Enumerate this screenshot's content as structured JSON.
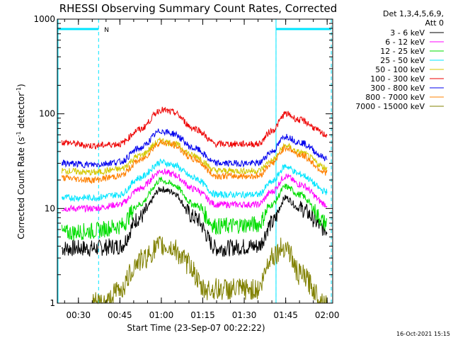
{
  "chart_data": {
    "type": "line",
    "title": "RHESSI Observing Summary Count Rates, Corrected",
    "xlabel": "Start Time (23-Sep-07 00:22:22)",
    "ylabel": "Corrected Count Rate (s",
    "ylabel_sup1": "-1",
    "ylabel_mid": " detector",
    "ylabel_sup2": "-1",
    "ylabel_end": ")",
    "yscale": "log",
    "ylim": [
      1,
      1000
    ],
    "xlim_minutes": [
      22.37,
      122
    ],
    "x_ticks": [
      {
        "label": "00:30",
        "minutes": 30
      },
      {
        "label": "00:45",
        "minutes": 45
      },
      {
        "label": "01:00",
        "minutes": 60
      },
      {
        "label": "01:15",
        "minutes": 75
      },
      {
        "label": "01:30",
        "minutes": 90
      },
      {
        "label": "01:45",
        "minutes": 105
      },
      {
        "label": "02:00",
        "minutes": 120
      }
    ],
    "y_ticks": [
      {
        "label": "1",
        "value": 1
      },
      {
        "label": "10",
        "value": 10
      },
      {
        "label": "100",
        "value": 100
      },
      {
        "label": "1000",
        "value": 1000
      }
    ],
    "legend_header_1": "Det 1,3,4,5,6,9,",
    "legend_header_2": "Att 0",
    "legend_placement": "right",
    "series": [
      {
        "name": "3 - 6 keV",
        "color": "#000000",
        "x": [
          24,
          35,
          45,
          52,
          60,
          64,
          72,
          80,
          95,
          100,
          105,
          110,
          120
        ],
        "y": [
          3.8,
          3.8,
          4.0,
          8,
          16,
          15,
          8,
          3.8,
          4.0,
          7,
          13,
          10,
          6
        ]
      },
      {
        "name": "6 - 12 keV",
        "color": "#ff00ff",
        "x": [
          24,
          35,
          45,
          52,
          60,
          64,
          72,
          80,
          95,
          100,
          105,
          110,
          120
        ],
        "y": [
          10,
          10,
          11,
          16,
          25,
          23,
          16,
          11,
          11,
          15,
          22,
          18,
          11
        ]
      },
      {
        "name": "12 - 25 keV",
        "color": "#00dd00",
        "x": [
          24,
          35,
          45,
          52,
          60,
          64,
          72,
          80,
          95,
          100,
          105,
          110,
          120
        ],
        "y": [
          5.5,
          5.8,
          6.5,
          11,
          20,
          18,
          11,
          6.5,
          6.8,
          11,
          17,
          14,
          7
        ]
      },
      {
        "name": "25 - 50 keV",
        "color": "#00e5ff",
        "x": [
          24,
          35,
          45,
          52,
          60,
          64,
          72,
          80,
          95,
          100,
          105,
          110,
          120
        ],
        "y": [
          13,
          13,
          14,
          21,
          31,
          29,
          21,
          14,
          14,
          19,
          28,
          23,
          15
        ]
      },
      {
        "name": "50 - 100 keV",
        "color": "#d4c800",
        "x": [
          24,
          35,
          45,
          52,
          60,
          64,
          72,
          80,
          95,
          100,
          105,
          110,
          120
        ],
        "y": [
          25,
          24,
          26,
          36,
          52,
          49,
          36,
          25,
          25,
          32,
          46,
          39,
          27
        ]
      },
      {
        "name": "100 - 300 keV",
        "color": "#ee0000",
        "x": [
          24,
          35,
          45,
          52,
          60,
          64,
          72,
          80,
          95,
          100,
          105,
          110,
          120
        ],
        "y": [
          50,
          46,
          48,
          68,
          110,
          104,
          70,
          48,
          48,
          66,
          100,
          86,
          60
        ]
      },
      {
        "name": "300 - 800 keV",
        "color": "#0000ee",
        "x": [
          24,
          35,
          45,
          52,
          60,
          64,
          72,
          80,
          95,
          100,
          105,
          110,
          120
        ],
        "y": [
          30,
          29,
          31,
          43,
          66,
          62,
          43,
          30,
          30,
          40,
          58,
          50,
          34
        ]
      },
      {
        "name": "800 - 7000 keV",
        "color": "#ff8000",
        "x": [
          24,
          35,
          45,
          52,
          60,
          64,
          72,
          80,
          95,
          100,
          105,
          110,
          120
        ],
        "y": [
          21,
          20,
          22,
          32,
          50,
          47,
          33,
          22,
          22,
          30,
          44,
          37,
          24
        ]
      },
      {
        "name": "7000 - 15000 keV",
        "color": "#808000",
        "x": [
          35,
          40,
          45,
          52,
          60,
          64,
          70,
          75,
          95,
          100,
          105,
          110,
          120
        ],
        "y": [
          1.0,
          1.0,
          1.4,
          2.8,
          4.0,
          3.8,
          2.6,
          1.4,
          1.4,
          3.2,
          4.0,
          2.0,
          1.0
        ]
      }
    ],
    "night_intervals": [
      {
        "from": 22.37,
        "to": 37.3,
        "label": "N"
      },
      {
        "from": 101.5,
        "to": 121.5,
        "label": ""
      }
    ],
    "footer_timestamp": "16-Oct-2021 15:15"
  }
}
